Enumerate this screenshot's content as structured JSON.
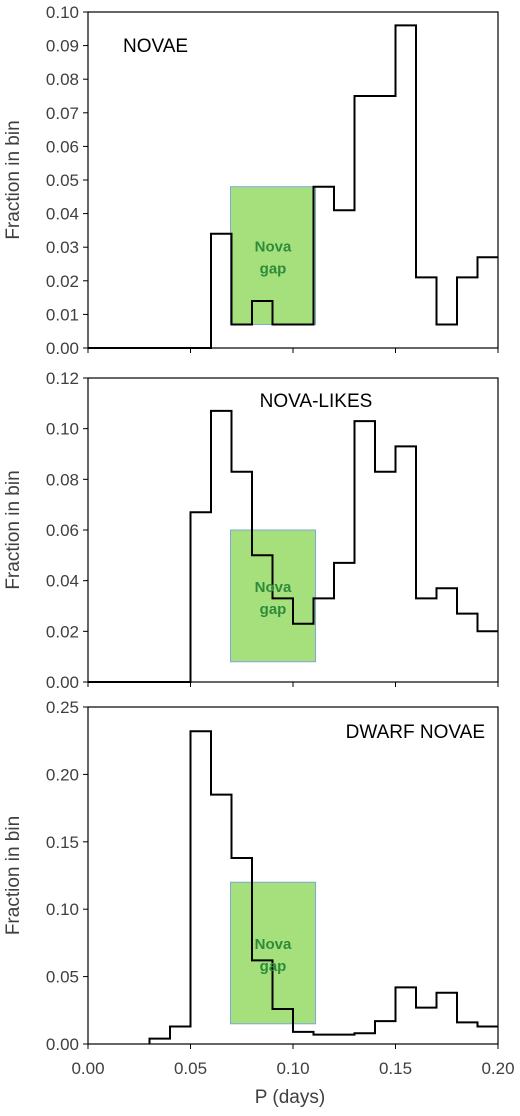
{
  "figure": {
    "xlabel": "P (days)",
    "x_ticks": [
      "0.00",
      "0.05",
      "0.10",
      "0.15",
      "0.20"
    ]
  },
  "colors": {
    "step_line": "#000000",
    "gap_fill": "#a6e07c",
    "gap_stroke": "#7da7d9",
    "gap_text": "#2e8b3a",
    "axis": "#000000"
  },
  "chart_data": [
    {
      "type": "line",
      "drawstyle": "step-histogram",
      "title": "NOVAE",
      "ylabel": "Fraction in bin",
      "xlim": [
        0.0,
        0.2
      ],
      "ylim": [
        0.0,
        0.1
      ],
      "y_ticks": [
        "0.00",
        "0.01",
        "0.02",
        "0.03",
        "0.04",
        "0.05",
        "0.06",
        "0.07",
        "0.08",
        "0.09",
        "0.10"
      ],
      "x_step": [
        0.0,
        0.06,
        0.06,
        0.07,
        0.07,
        0.08,
        0.08,
        0.09,
        0.09,
        0.11,
        0.11,
        0.12,
        0.12,
        0.13,
        0.13,
        0.15,
        0.15,
        0.16,
        0.16,
        0.17,
        0.17,
        0.18,
        0.18,
        0.19,
        0.19,
        0.2
      ],
      "y_step": [
        0.0,
        0.0,
        0.034,
        0.034,
        0.007,
        0.007,
        0.014,
        0.014,
        0.007,
        0.007,
        0.048,
        0.048,
        0.041,
        0.041,
        0.075,
        0.075,
        0.096,
        0.096,
        0.021,
        0.021,
        0.007,
        0.007,
        0.021,
        0.021,
        0.027,
        0.027
      ],
      "gap_box": {
        "x": [
          0.0695,
          0.111
        ],
        "y": [
          0.007,
          0.048
        ]
      },
      "gap_label": [
        "Nova",
        "gap"
      ]
    },
    {
      "type": "line",
      "drawstyle": "step-histogram",
      "title": "NOVA-LIKES",
      "ylabel": "Fraction in bin",
      "xlim": [
        0.0,
        0.2
      ],
      "ylim": [
        0.0,
        0.12
      ],
      "y_ticks": [
        "0.00",
        "0.02",
        "0.04",
        "0.06",
        "0.08",
        "0.10",
        "0.12"
      ],
      "x_step": [
        0.0,
        0.05,
        0.05,
        0.06,
        0.06,
        0.07,
        0.07,
        0.08,
        0.08,
        0.09,
        0.09,
        0.1,
        0.1,
        0.11,
        0.11,
        0.12,
        0.12,
        0.13,
        0.13,
        0.14,
        0.14,
        0.15,
        0.15,
        0.16,
        0.16,
        0.17,
        0.17,
        0.18,
        0.18,
        0.19,
        0.19,
        0.2
      ],
      "y_step": [
        0.0,
        0.0,
        0.067,
        0.067,
        0.107,
        0.107,
        0.083,
        0.083,
        0.05,
        0.05,
        0.033,
        0.033,
        0.023,
        0.023,
        0.033,
        0.033,
        0.047,
        0.047,
        0.103,
        0.103,
        0.083,
        0.083,
        0.093,
        0.093,
        0.033,
        0.033,
        0.037,
        0.037,
        0.027,
        0.027,
        0.02,
        0.02
      ],
      "gap_box": {
        "x": [
          0.0695,
          0.111
        ],
        "y": [
          0.008,
          0.06
        ]
      },
      "gap_label": [
        "Nova",
        "gap"
      ]
    },
    {
      "type": "line",
      "drawstyle": "step-histogram",
      "title": "DWARF NOVAE",
      "ylabel": "Fraction in bin",
      "xlim": [
        0.0,
        0.2
      ],
      "ylim": [
        0.0,
        0.25
      ],
      "y_ticks": [
        "0.00",
        "0.05",
        "0.10",
        "0.15",
        "0.20",
        "0.25"
      ],
      "x_step": [
        0.03,
        0.03,
        0.04,
        0.04,
        0.05,
        0.05,
        0.06,
        0.06,
        0.07,
        0.07,
        0.08,
        0.08,
        0.09,
        0.09,
        0.1,
        0.1,
        0.11,
        0.11,
        0.12,
        0.12,
        0.13,
        0.13,
        0.14,
        0.14,
        0.15,
        0.15,
        0.16,
        0.16,
        0.17,
        0.17,
        0.18,
        0.18,
        0.19,
        0.19,
        0.2
      ],
      "y_step": [
        0.0,
        0.004,
        0.004,
        0.013,
        0.013,
        0.232,
        0.232,
        0.185,
        0.185,
        0.138,
        0.138,
        0.062,
        0.062,
        0.026,
        0.026,
        0.009,
        0.009,
        0.007,
        0.007,
        0.007,
        0.007,
        0.008,
        0.008,
        0.017,
        0.017,
        0.042,
        0.042,
        0.027,
        0.027,
        0.038,
        0.038,
        0.016,
        0.016,
        0.013,
        0.013
      ],
      "gap_box": {
        "x": [
          0.0695,
          0.111
        ],
        "y": [
          0.015,
          0.12
        ]
      },
      "gap_label": [
        "Nova",
        "gap"
      ]
    }
  ]
}
